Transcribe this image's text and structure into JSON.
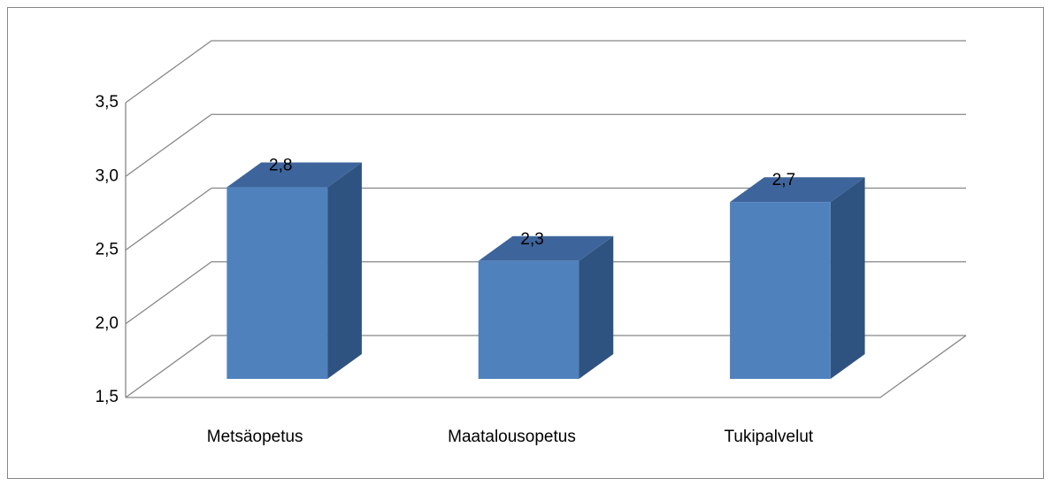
{
  "chart_data": {
    "type": "bar3d",
    "categories": [
      "Metsäopetus",
      "Maatalousopetus",
      "Tukipalvelut"
    ],
    "values": [
      2.8,
      2.3,
      2.7
    ],
    "value_labels": [
      "2,8",
      "2,3",
      "2,7"
    ],
    "color": "#4f81bd",
    "ylim": [
      1.5,
      3.5
    ],
    "yticks": [
      {
        "value": 1.5,
        "label": "1,5"
      },
      {
        "value": 2.0,
        "label": "2,0"
      },
      {
        "value": 2.5,
        "label": "2,5"
      },
      {
        "value": 3.0,
        "label": "3,0"
      },
      {
        "value": 3.5,
        "label": "3,5"
      }
    ],
    "grid": true
  }
}
